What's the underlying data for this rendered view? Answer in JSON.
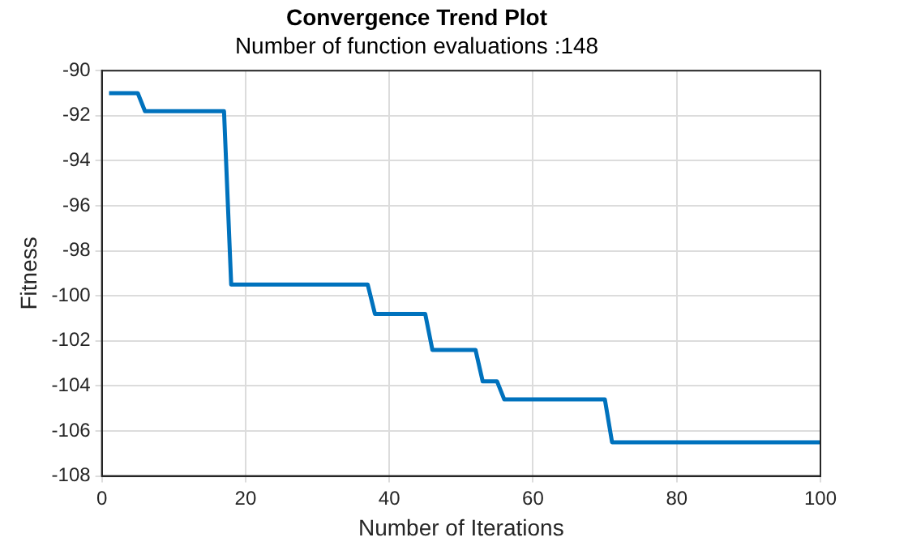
{
  "chart_data": {
    "type": "line",
    "title": "Convergence Trend Plot",
    "subtitle": "Number of function evaluations :148",
    "xlabel": "Number of Iterations",
    "ylabel": "Fitness",
    "x": [
      1,
      5,
      6,
      17,
      18,
      37,
      38,
      45,
      46,
      52,
      53,
      55,
      56,
      70,
      71,
      100
    ],
    "series": [
      {
        "color": "#0072bd",
        "values": [
          -91,
          -91,
          -91.8,
          -91.8,
          -99.5,
          -99.5,
          -100.8,
          -100.8,
          -102.4,
          -102.4,
          -103.8,
          -103.8,
          -104.6,
          -104.6,
          -106.5,
          -106.5
        ]
      }
    ],
    "xlim": [
      0,
      100
    ],
    "xticks": [
      0,
      20,
      40,
      60,
      80,
      100
    ],
    "ylim": [
      -108,
      -90
    ],
    "yticks": [
      -108,
      -106,
      -104,
      -102,
      -100,
      -98,
      -96,
      -94,
      -92,
      -90
    ],
    "grid": true,
    "legend": false,
    "marker": "none",
    "line_style": "solid"
  }
}
